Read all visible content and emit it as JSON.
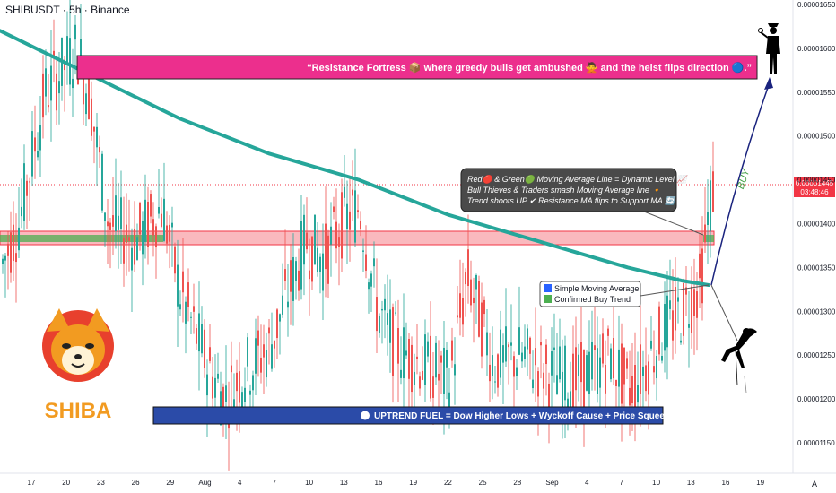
{
  "header": {
    "symbol": "SHIBUSDT · 5h · Binance"
  },
  "annotations": {
    "resistance_banner": "“Resistance Fortress 📦 where greedy bulls get ambushed 🙅 and the heist flips direction 🔵.”",
    "info_box_lines": [
      "Red🔴 & Green🟢 Moving Average Line = Dynamic Level 📈",
      "Bull Thieves & Traders smash Moving Average line 🔸",
      "Trend shoots UP ✔ Resistance MA flips to Support MA 🔄"
    ],
    "sma_label_1": "Simple Moving Average",
    "sma_label_2": "Confirmed Buy Trend",
    "buy_label": "BUY",
    "uptrend_banner": "UPTREND FUEL = Dow Higher Lows + Wyckoff Cause + Price Squeeze",
    "logo_text": "SHIBA"
  },
  "price_tag": {
    "price": "0.00001445",
    "countdown": "03:48:46"
  },
  "chart_data": {
    "type": "line",
    "title": "SHIBUSDT · 5h · Binance",
    "x_ticks": [
      "17",
      "20",
      "23",
      "26",
      "29",
      "Aug",
      "4",
      "7",
      "10",
      "13",
      "16",
      "19",
      "22",
      "25",
      "28",
      "Sep",
      "4",
      "7",
      "10",
      "13",
      "16",
      "19"
    ],
    "y_ticks": [
      "0.00001650",
      "0.00001600",
      "0.00001550",
      "0.00001500",
      "0.00001450",
      "0.00001400",
      "0.00001350",
      "0.00001300",
      "0.00001250",
      "0.00001200",
      "0.00001150"
    ],
    "ylim": [
      1.13e-05,
      1.66e-05
    ],
    "series": [
      {
        "name": "",
        "type": "ma",
        "color": "#26a69a",
        "x": [
          0,
          60,
          120,
          200,
          300,
          400,
          500,
          600,
          700,
          760,
          790
        ],
        "values": [
          1.62e-05,
          1.59e-05,
          1.56e-05,
          1.52e-05,
          1.48e-05,
          1.45e-05,
          1.41e-05,
          1.38e-05,
          1.35e-05,
          1.335e-05,
          1.33e-05
        ]
      },
      {
        "name": "",
        "type": "price",
        "color": "#26a69a",
        "x": [
          0,
          20,
          50,
          85,
          100,
          120,
          150,
          180,
          200,
          230,
          250,
          270,
          300,
          320,
          340,
          360,
          380,
          400,
          420,
          440,
          470,
          500,
          520,
          550,
          580,
          610,
          640,
          680,
          700,
          720,
          740,
          760,
          780,
          790,
          795
        ],
        "values": [
          1.35e-05,
          1.4e-05,
          1.55e-05,
          1.6e-05,
          1.54e-05,
          1.4e-05,
          1.38e-05,
          1.42e-05,
          1.32e-05,
          1.24e-05,
          1.2e-05,
          1.23e-05,
          1.26e-05,
          1.32e-05,
          1.38e-05,
          1.36e-05,
          1.4e-05,
          1.42e-05,
          1.3e-05,
          1.26e-05,
          1.24e-05,
          1.22e-05,
          1.34e-05,
          1.24e-05,
          1.25e-05,
          1.23e-05,
          1.22e-05,
          1.25e-05,
          1.21e-05,
          1.24e-05,
          1.28e-05,
          1.3e-05,
          1.33e-05,
          1.42e-05,
          1.445e-05
        ]
      }
    ],
    "levels": [
      {
        "name": "",
        "value": 1.39e-05,
        "color": "#f23645"
      },
      {
        "name": "",
        "value": 1.445e-05,
        "color": "#f23645"
      }
    ],
    "grid": false
  }
}
